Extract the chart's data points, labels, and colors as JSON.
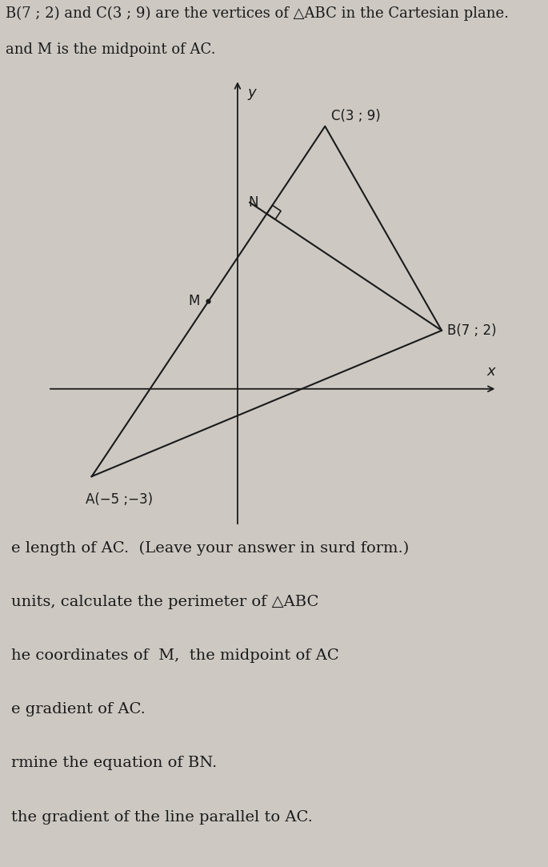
{
  "background_color": "#cdc8c2",
  "title_line1": "B(7 ; 2) and C(3 ; 9) are the vertices of △ABC in the Cartesian plane.",
  "title_line2": "and M is the midpoint of AC.",
  "A": [
    -5,
    -3
  ],
  "B": [
    7,
    2
  ],
  "C": [
    3,
    9
  ],
  "label_A": "A(−5 ;−3)",
  "label_B": "B(7 ; 2)",
  "label_C": "C(3 ; 9)",
  "label_M": "M",
  "label_N": "N",
  "label_y": "y",
  "label_x": "x",
  "axis_color": "#1a1a1a",
  "triangle_color": "#1a1a1a",
  "line_color": "#1a1a1a",
  "text_color": "#1a1a1a",
  "header_fontsize": 13,
  "label_fontsize": 12,
  "question_fontsize": 14,
  "questions": [
    "e length of AC.  (Leave your answer in surd form.)",
    "units, calculate the perimeter of △ABC",
    "he coordinates of  M,  the midpoint of AC",
    "e gradient of AC.",
    "rmine the equation of BN.",
    "the gradient of the line parallel to AC."
  ]
}
